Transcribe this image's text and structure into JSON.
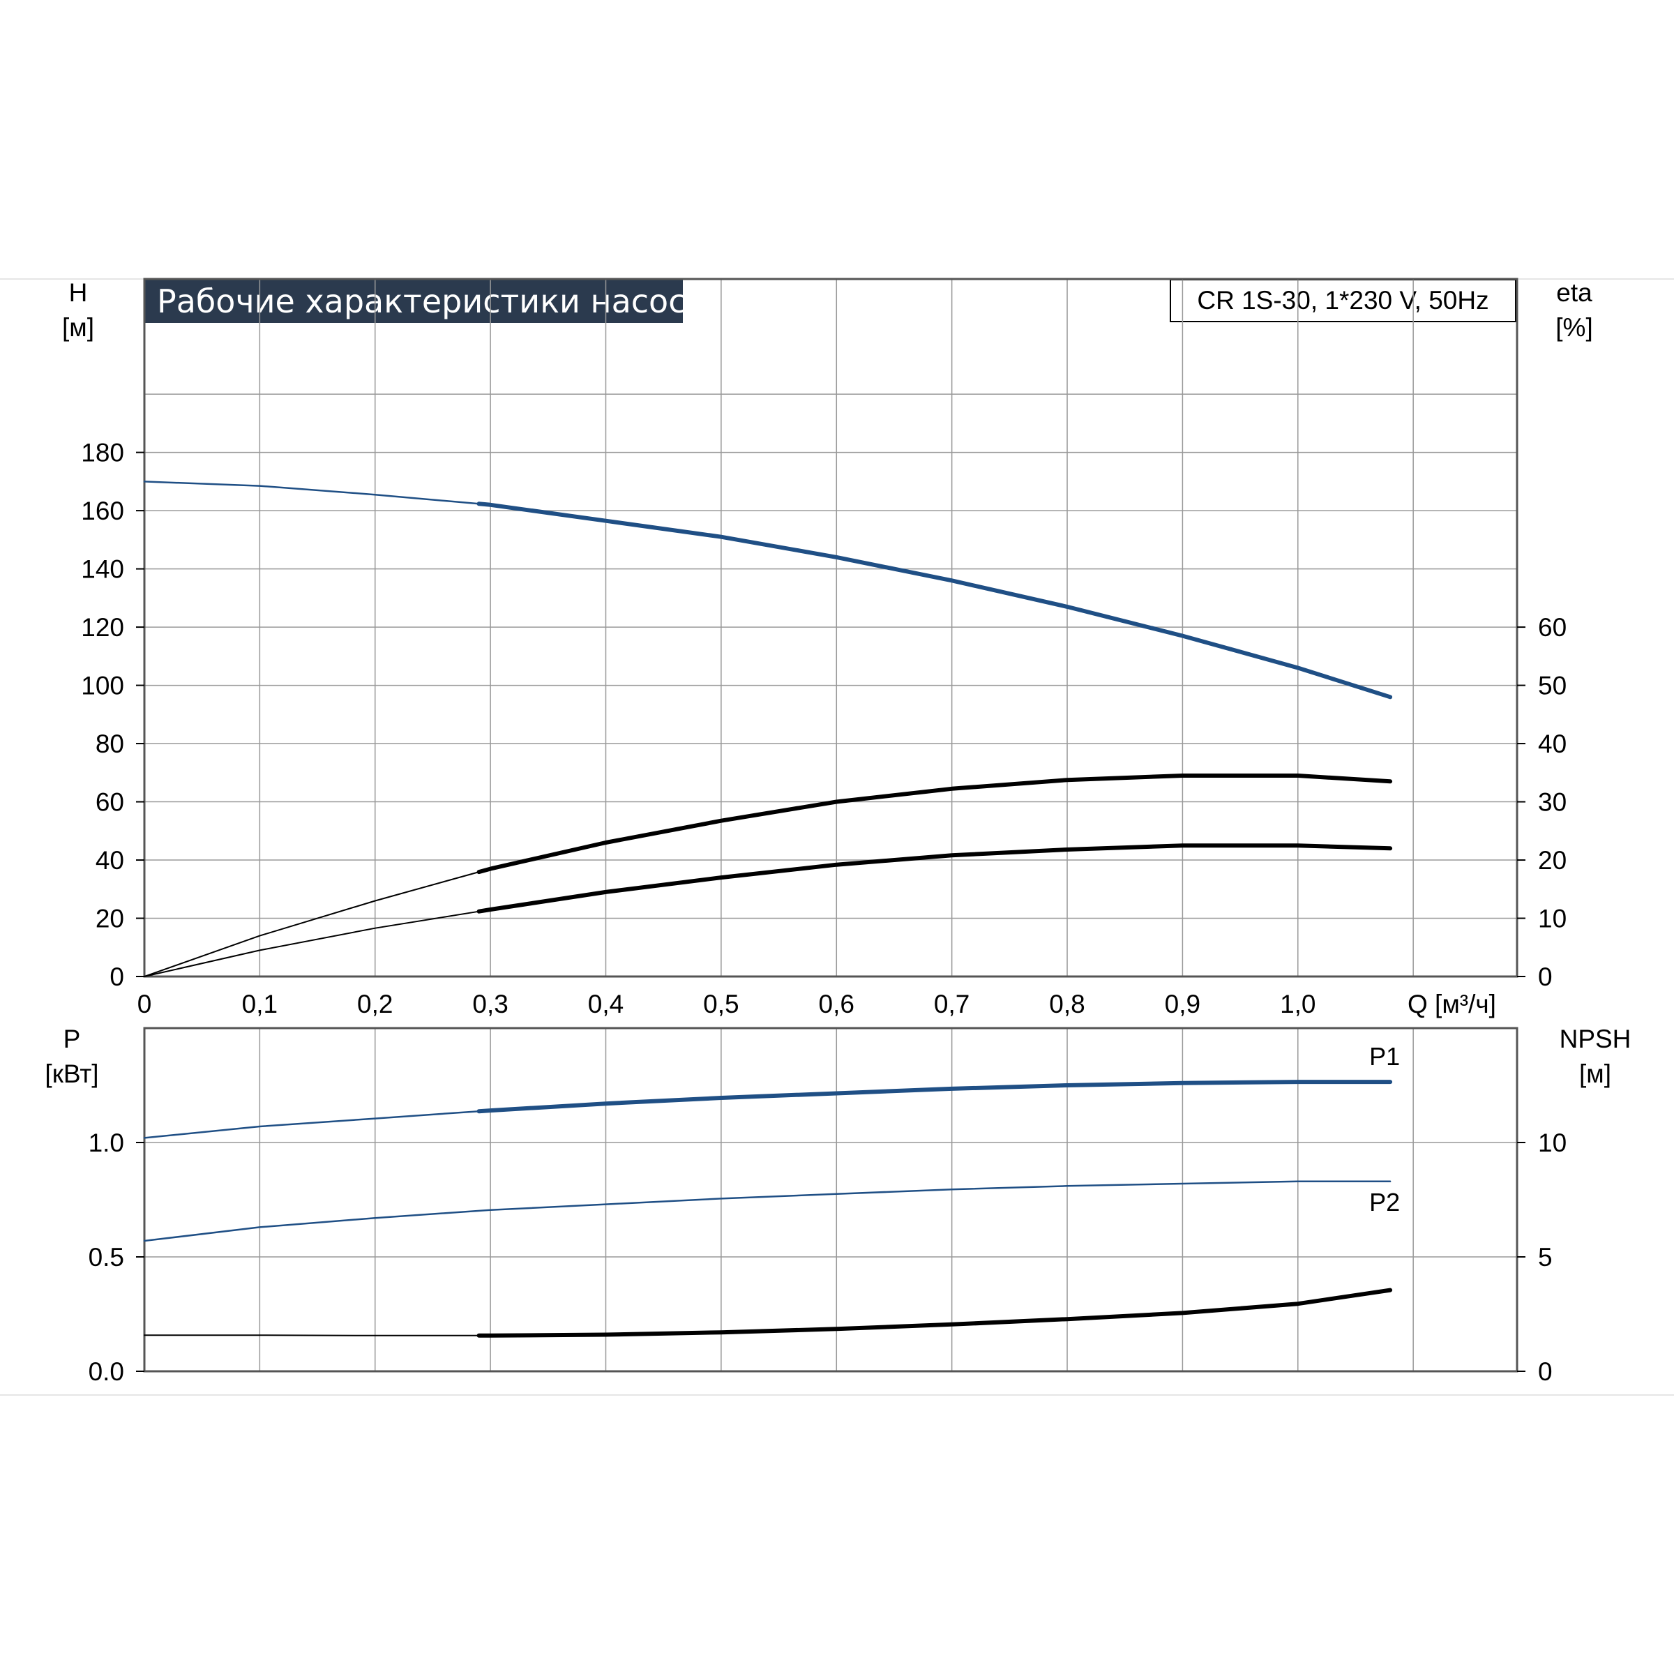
{
  "title": "Рабочие характеристики насоса",
  "model": "CR 1S-30, 1*230 V, 50Hz",
  "colors": {
    "blue": "#1f4f85",
    "black": "#000000",
    "grid": "#999999",
    "frame": "#555555"
  },
  "chart_data": [
    {
      "type": "line",
      "panel": "upper",
      "y_axis_label": [
        "H",
        "[м]"
      ],
      "y2_axis_label": [
        "eta",
        "[%]"
      ],
      "x_axis_label": "Q [м³/ч]",
      "x_ticks": [
        "0",
        "0,1",
        "0,2",
        "0,3",
        "0,4",
        "0,5",
        "0,6",
        "0,7",
        "0,8",
        "0,9",
        "1,0"
      ],
      "y_ticks": [
        "0",
        "20",
        "40",
        "60",
        "80",
        "100",
        "120",
        "140",
        "160",
        "180"
      ],
      "y2_ticks": [
        "0",
        "10",
        "20",
        "30",
        "40",
        "50",
        "60"
      ],
      "xlim": [
        0,
        1.19
      ],
      "ylim": [
        0,
        218
      ],
      "y2lim": [
        0,
        109
      ],
      "grid": true,
      "series": [
        {
          "axis": "left",
          "color": "blue",
          "thick_from": 0.29,
          "x": [
            0,
            0.1,
            0.2,
            0.3,
            0.4,
            0.5,
            0.6,
            0.7,
            0.8,
            0.9,
            1.0,
            1.08
          ],
          "y": [
            170,
            168.5,
            165.5,
            162,
            156.5,
            151,
            144,
            136,
            127,
            117,
            106,
            96
          ]
        },
        {
          "axis": "left",
          "color": "black",
          "thick_from": 0.29,
          "x": [
            0,
            0.1,
            0.2,
            0.3,
            0.4,
            0.5,
            0.6,
            0.7,
            0.8,
            0.9,
            1.0,
            1.08
          ],
          "y": [
            0,
            14,
            26,
            37,
            46,
            53.5,
            60,
            64.5,
            67.5,
            69,
            69,
            67
          ]
        },
        {
          "axis": "right",
          "color": "black",
          "thick_from": 0.29,
          "x": [
            0,
            0.1,
            0.2,
            0.3,
            0.4,
            0.5,
            0.6,
            0.7,
            0.8,
            0.9,
            1.0,
            1.08
          ],
          "y": [
            0,
            4.5,
            8.3,
            11.5,
            14.5,
            17,
            19.2,
            20.8,
            21.8,
            22.5,
            22.5,
            22
          ]
        }
      ]
    },
    {
      "type": "line",
      "panel": "lower",
      "y_axis_label": [
        "P",
        "[кВт]"
      ],
      "y2_axis_label": [
        "NPSH",
        "[м]"
      ],
      "y_ticks": [
        "0.0",
        "0.5",
        "1.0"
      ],
      "y2_ticks": [
        "0",
        "5",
        "10"
      ],
      "xlim": [
        0,
        1.19
      ],
      "ylim": [
        0,
        1.5
      ],
      "y2lim": [
        0,
        15
      ],
      "grid": true,
      "series": [
        {
          "name": "P1",
          "axis": "left",
          "color": "blue",
          "thick_from": 0.29,
          "x": [
            0,
            0.1,
            0.2,
            0.3,
            0.4,
            0.5,
            0.6,
            0.7,
            0.8,
            0.9,
            1.0,
            1.08
          ],
          "y": [
            1.02,
            1.07,
            1.105,
            1.14,
            1.17,
            1.195,
            1.215,
            1.235,
            1.25,
            1.26,
            1.265,
            1.265
          ]
        },
        {
          "name": "P2",
          "axis": "left",
          "color": "blue",
          "thick_from": 2,
          "x": [
            0,
            0.1,
            0.2,
            0.3,
            0.4,
            0.5,
            0.6,
            0.7,
            0.8,
            0.9,
            1.0,
            1.08
          ],
          "y": [
            0.57,
            0.63,
            0.67,
            0.705,
            0.73,
            0.755,
            0.775,
            0.795,
            0.81,
            0.82,
            0.83,
            0.83
          ]
        },
        {
          "axis": "right",
          "color": "black",
          "thick_from": 0.29,
          "x": [
            0,
            0.1,
            0.2,
            0.3,
            0.4,
            0.5,
            0.6,
            0.7,
            0.8,
            0.9,
            1.0,
            1.08
          ],
          "y": [
            1.58,
            1.58,
            1.56,
            1.56,
            1.6,
            1.7,
            1.85,
            2.05,
            2.28,
            2.55,
            2.95,
            3.55
          ]
        }
      ]
    }
  ]
}
